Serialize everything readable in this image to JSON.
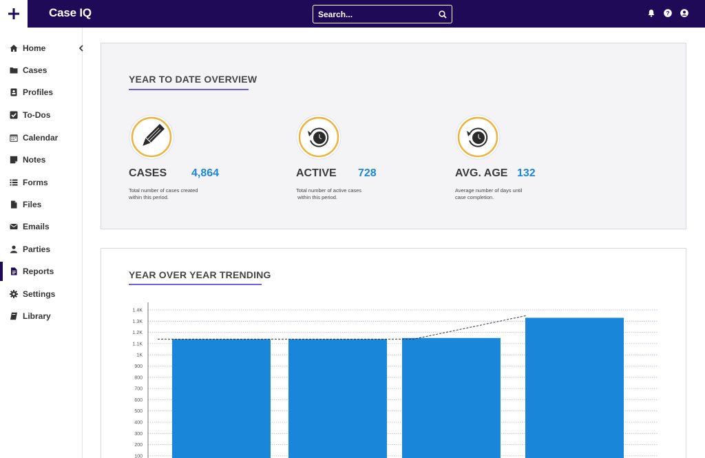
{
  "app": {
    "title": "Case IQ"
  },
  "header": {
    "search_placeholder": "Search...",
    "icons": [
      "plus-icon",
      "search-icon",
      "bell-icon",
      "help-icon",
      "user-icon"
    ]
  },
  "sidebar": {
    "items": [
      {
        "label": "Home",
        "icon": "home-icon"
      },
      {
        "label": "Cases",
        "icon": "folder-icon"
      },
      {
        "label": "Profiles",
        "icon": "id-card-icon"
      },
      {
        "label": "To-Dos",
        "icon": "checkbox-icon"
      },
      {
        "label": "Calendar",
        "icon": "calendar-icon"
      },
      {
        "label": "Notes",
        "icon": "note-icon"
      },
      {
        "label": "Forms",
        "icon": "list-icon"
      },
      {
        "label": "Files",
        "icon": "file-icon"
      },
      {
        "label": "Emails",
        "icon": "envelope-icon"
      },
      {
        "label": "Parties",
        "icon": "person-icon"
      },
      {
        "label": "Reports",
        "icon": "report-icon",
        "active": true
      },
      {
        "label": "Settings",
        "icon": "gear-icon"
      },
      {
        "label": "Library",
        "icon": "book-icon"
      }
    ]
  },
  "overview": {
    "title": "YEAR TO DATE OVERVIEW",
    "stats": [
      {
        "label": "CASES",
        "value": "4,864",
        "desc1": "Total number of cases created",
        "desc2": "within this period.",
        "icon": "pencil-icon"
      },
      {
        "label": "ACTIVE",
        "value": "728",
        "desc1": "Total number of active cases",
        "desc2": " within this period.",
        "icon": "clock-icon"
      },
      {
        "label": "AVG. AGE",
        "value": "132",
        "desc1": "Average number of days until",
        "desc2": "case completion.",
        "icon": "clock-icon"
      }
    ],
    "colors": {
      "ring": "#f0b23a",
      "value": "#1c88d9",
      "underline": "#6b5fe6"
    }
  },
  "trending": {
    "title": "YEAR OVER YEAR TRENDING"
  },
  "chart_data": {
    "type": "bar",
    "categories": [
      "",
      "",
      "",
      ""
    ],
    "values": [
      1140,
      1140,
      1150,
      1330
    ],
    "trend_line": [
      1140,
      1140,
      1140,
      1350
    ],
    "yticks": [
      "100",
      "200",
      "300",
      "400",
      "500",
      "600",
      "700",
      "800",
      "900",
      "1K",
      "1.1K",
      "1.2K",
      "1.3K",
      "1.4K"
    ],
    "ylim": [
      0,
      1400
    ],
    "grid": true,
    "bar_color": "#1a86d9"
  }
}
